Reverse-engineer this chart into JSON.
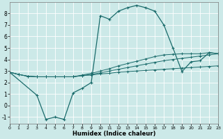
{
  "xlabel": "Humidex (Indice chaleur)",
  "bg_color": "#cce9e8",
  "line_color": "#1a6b6b",
  "grid_color": "#ffffff",
  "xlim": [
    0,
    23
  ],
  "ylim": [
    -1.6,
    9.0
  ],
  "xticks": [
    0,
    1,
    2,
    3,
    4,
    5,
    6,
    7,
    8,
    9,
    10,
    11,
    12,
    13,
    14,
    15,
    16,
    17,
    18,
    19,
    20,
    21,
    22,
    23
  ],
  "yticks": [
    -1,
    0,
    1,
    2,
    3,
    4,
    5,
    6,
    7,
    8
  ],
  "line1_x": [
    0,
    1,
    2,
    3,
    4,
    5,
    6,
    7,
    8,
    9,
    10,
    11,
    12,
    13,
    14,
    15,
    16,
    17,
    18,
    19,
    20,
    21,
    22,
    23
  ],
  "line1_y": [
    2.9,
    2.7,
    2.55,
    2.5,
    2.5,
    2.5,
    2.5,
    2.5,
    2.6,
    2.65,
    2.75,
    2.8,
    2.9,
    2.95,
    3.0,
    3.05,
    3.1,
    3.15,
    3.2,
    3.25,
    3.3,
    3.35,
    3.4,
    3.45
  ],
  "line2_x": [
    0,
    1,
    2,
    3,
    4,
    5,
    6,
    7,
    8,
    9,
    10,
    11,
    12,
    13,
    14,
    15,
    16,
    17,
    18,
    19,
    20,
    21,
    22,
    23
  ],
  "line2_y": [
    2.9,
    2.7,
    2.55,
    2.5,
    2.5,
    2.5,
    2.5,
    2.5,
    2.65,
    2.8,
    3.0,
    3.2,
    3.45,
    3.65,
    3.85,
    4.05,
    4.25,
    4.4,
    4.45,
    4.5,
    4.5,
    4.5,
    4.6,
    4.5
  ],
  "line3_x": [
    0,
    3,
    4,
    5,
    6,
    7,
    8,
    9,
    10,
    11,
    12,
    13,
    14,
    15,
    16,
    17,
    18,
    19,
    20,
    21,
    22,
    23
  ],
  "line3_y": [
    2.9,
    0.9,
    -1.2,
    -1.0,
    -1.2,
    1.1,
    1.5,
    2.0,
    7.8,
    7.5,
    8.2,
    8.5,
    8.7,
    8.5,
    8.2,
    7.0,
    5.0,
    2.95,
    3.8,
    3.9,
    4.6,
    4.5
  ],
  "line4_x": [
    0,
    1,
    2,
    3,
    4,
    5,
    6,
    7,
    8,
    9,
    10,
    11,
    12,
    13,
    14,
    15,
    16,
    17,
    18,
    19,
    20,
    21,
    22,
    23
  ],
  "line4_y": [
    2.9,
    2.7,
    2.55,
    2.5,
    2.5,
    2.5,
    2.5,
    2.5,
    2.6,
    2.7,
    2.85,
    3.0,
    3.15,
    3.3,
    3.45,
    3.6,
    3.75,
    3.9,
    4.0,
    4.1,
    4.2,
    4.3,
    4.4,
    4.5
  ]
}
